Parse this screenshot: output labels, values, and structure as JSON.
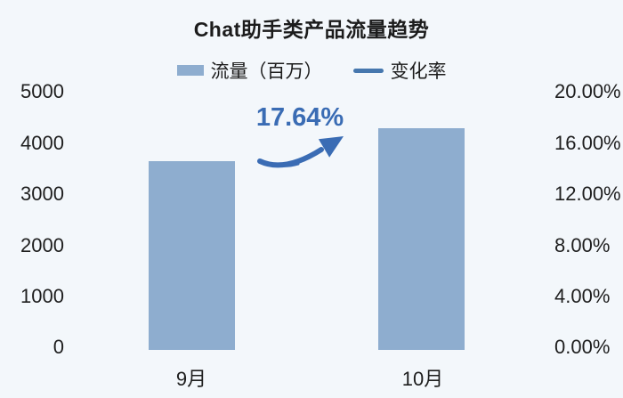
{
  "title": "Chat助手类产品流量趋势",
  "legend": {
    "traffic": {
      "label": "流量（百万）",
      "swatch": "bar-swatch",
      "color": "#8EADCF"
    },
    "change_rate": {
      "label": "变化率",
      "swatch": "line-swatch",
      "color": "#4677AE"
    }
  },
  "annotation": {
    "text": "17.64%",
    "color": "#3A6CB4",
    "icon": "up-trend-arrow"
  },
  "colors": {
    "background": "#F3F7FB",
    "bar": "#8EADCF",
    "accent_blue": "#3A6CB4",
    "legend_line": "#4677AE",
    "text": "#1c1c1c"
  },
  "chart_data": {
    "type": "bar",
    "title": "Chat助手类产品流量趋势",
    "categories": [
      "9月",
      "10月"
    ],
    "series": [
      {
        "name": "流量（百万）",
        "type": "bar",
        "axis": "left",
        "values": [
          3650,
          4294
        ]
      },
      {
        "name": "变化率",
        "type": "line",
        "axis": "right",
        "values": [
          null,
          17.64
        ],
        "unit": "%"
      }
    ],
    "growth_annotation": "17.64%",
    "y_left": {
      "label": "",
      "min": 0,
      "max": 5000,
      "ticks": [
        "5000",
        "4000",
        "3000",
        "2000",
        "1000",
        "0"
      ]
    },
    "y_right": {
      "label": "",
      "min": 0,
      "max": 20,
      "ticks": [
        "20.00%",
        "16.00%",
        "12.00%",
        "8.00%",
        "4.00%",
        "0.00%"
      ]
    },
    "grid": false,
    "legend_position": "top"
  }
}
